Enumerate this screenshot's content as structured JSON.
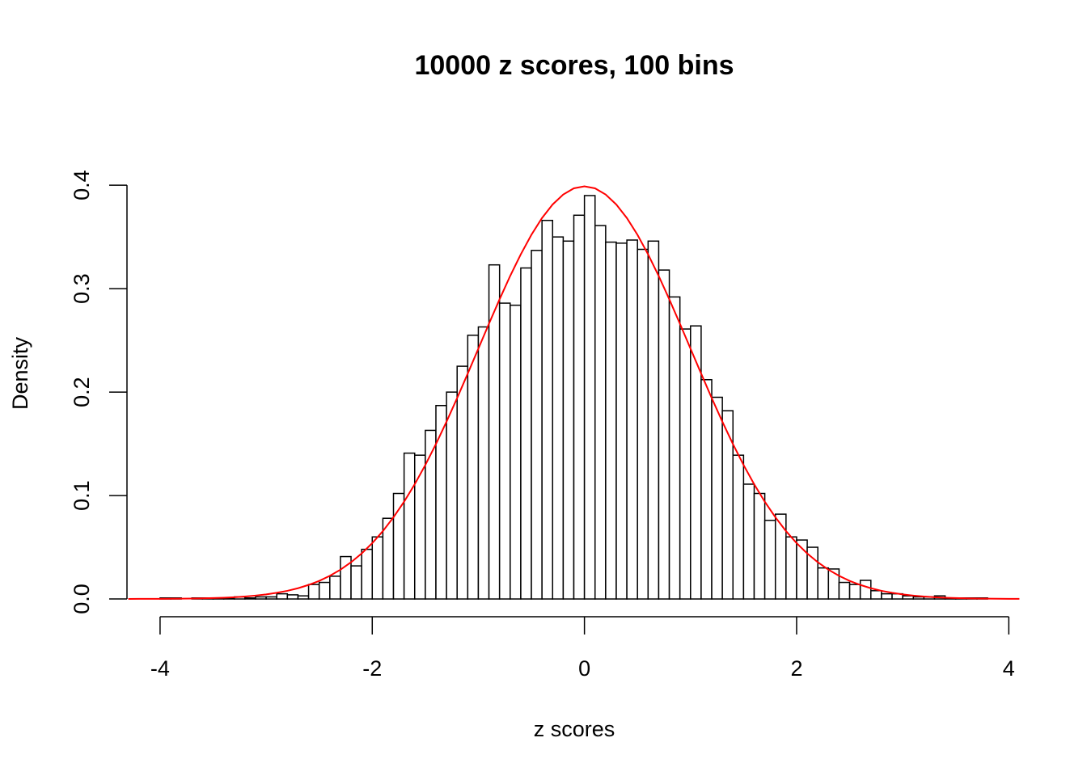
{
  "chart_data": {
    "type": "histogram",
    "title": "10000 z scores, 100 bins",
    "x_label": "z scores",
    "y_label": "Density",
    "bins": [
      -4.0,
      -3.9,
      -3.8,
      -3.7,
      -3.6,
      -3.5,
      -3.4,
      -3.3,
      -3.2,
      -3.1,
      -3.0,
      -2.9,
      -2.8,
      -2.7,
      -2.6,
      -2.5,
      -2.4,
      -2.3,
      -2.2,
      -2.1,
      -2.0,
      -1.9,
      -1.8,
      -1.7,
      -1.6,
      -1.5,
      -1.4,
      -1.3,
      -1.2,
      -1.1,
      -1.0,
      -0.9,
      -0.8,
      -0.7,
      -0.6,
      -0.5,
      -0.4,
      -0.3,
      -0.2,
      -0.1,
      0.0,
      0.1,
      0.2,
      0.3,
      0.4,
      0.5,
      0.6,
      0.7,
      0.8,
      0.9,
      1.0,
      1.1,
      1.2,
      1.3,
      1.4,
      1.5,
      1.6,
      1.7,
      1.8,
      1.9,
      2.0,
      2.1,
      2.2,
      2.3,
      2.4,
      2.5,
      2.6,
      2.7,
      2.8,
      2.9,
      3.0,
      3.1,
      3.2,
      3.3,
      3.4,
      3.5,
      3.6,
      3.7,
      3.8
    ],
    "values": [
      0.001,
      0.001,
      0,
      0.001,
      0.001,
      0.001,
      0.001,
      0.002,
      0.001,
      0.002,
      0.002,
      0.005,
      0.004,
      0.003,
      0.014,
      0.016,
      0.022,
      0.041,
      0.032,
      0.048,
      0.06,
      0.078,
      0.102,
      0.141,
      0.139,
      0.163,
      0.187,
      0.2,
      0.225,
      0.255,
      0.263,
      0.323,
      0.286,
      0.284,
      0.32,
      0.337,
      0.366,
      0.35,
      0.346,
      0.371,
      0.39,
      0.361,
      0.345,
      0.344,
      0.347,
      0.338,
      0.346,
      0.318,
      0.292,
      0.261,
      0.264,
      0.212,
      0.195,
      0.182,
      0.139,
      0.111,
      0.102,
      0.076,
      0.082,
      0.06,
      0.057,
      0.05,
      0.03,
      0.029,
      0.016,
      0.014,
      0.018,
      0.008,
      0.005,
      0.005,
      0.003,
      0.002,
      0.002,
      0.003,
      0.001,
      0.001,
      0.001,
      0.001
    ],
    "bar_fill": "#ffffff",
    "bar_stroke": "#000000",
    "density_curve": {
      "color": "#ff0000",
      "x": [
        -4.3,
        -4.2,
        -4.1,
        -4.0,
        -3.9,
        -3.8,
        -3.7,
        -3.6,
        -3.5,
        -3.4,
        -3.3,
        -3.2,
        -3.1,
        -3.0,
        -2.9,
        -2.8,
        -2.7,
        -2.6,
        -2.5,
        -2.4,
        -2.3,
        -2.2,
        -2.1,
        -2.0,
        -1.9,
        -1.8,
        -1.7,
        -1.6,
        -1.5,
        -1.4,
        -1.3,
        -1.2,
        -1.1,
        -1.0,
        -0.9,
        -0.8,
        -0.7,
        -0.6,
        -0.5,
        -0.4,
        -0.3,
        -0.2,
        -0.1,
        0.0,
        0.1,
        0.2,
        0.3,
        0.4,
        0.5,
        0.6,
        0.7,
        0.8,
        0.9,
        1.0,
        1.1,
        1.2,
        1.3,
        1.4,
        1.5,
        1.6,
        1.7,
        1.8,
        1.9,
        2.0,
        2.1,
        2.2,
        2.3,
        2.4,
        2.5,
        2.6,
        2.7,
        2.8,
        2.9,
        3.0,
        3.1,
        3.2,
        3.3,
        3.4,
        3.5,
        3.6,
        3.7,
        3.8,
        3.9,
        4.0,
        4.1
      ],
      "values": [
        0.0,
        0.0001,
        0.0001,
        0.0001,
        0.0002,
        0.0003,
        0.0004,
        0.0006,
        0.0009,
        0.0012,
        0.0017,
        0.0024,
        0.0033,
        0.0044,
        0.006,
        0.0079,
        0.0104,
        0.0136,
        0.0175,
        0.0224,
        0.0283,
        0.0355,
        0.044,
        0.054,
        0.0656,
        0.079,
        0.094,
        0.1109,
        0.1295,
        0.1497,
        0.1714,
        0.1942,
        0.2179,
        0.242,
        0.2661,
        0.2897,
        0.3123,
        0.3332,
        0.3521,
        0.3683,
        0.3814,
        0.391,
        0.397,
        0.3989,
        0.397,
        0.391,
        0.3814,
        0.3683,
        0.3521,
        0.3332,
        0.3123,
        0.2897,
        0.2661,
        0.242,
        0.2179,
        0.1942,
        0.1714,
        0.1497,
        0.1295,
        0.1109,
        0.094,
        0.079,
        0.0656,
        0.054,
        0.044,
        0.0355,
        0.0283,
        0.0224,
        0.0175,
        0.0136,
        0.0104,
        0.0079,
        0.006,
        0.0044,
        0.0033,
        0.0024,
        0.0017,
        0.0012,
        0.0009,
        0.0006,
        0.0004,
        0.0003,
        0.0002,
        0.0001,
        0.0001
      ]
    },
    "xlim": [
      -4.312,
      4.112
    ],
    "ylim": [
      -0.0156,
      0.4056
    ],
    "xticks": [
      -4,
      -2,
      0,
      2,
      4
    ],
    "yticks": [
      {
        "value": 0,
        "label": "0.0"
      },
      0.1,
      0.2,
      0.3,
      0.4
    ]
  }
}
